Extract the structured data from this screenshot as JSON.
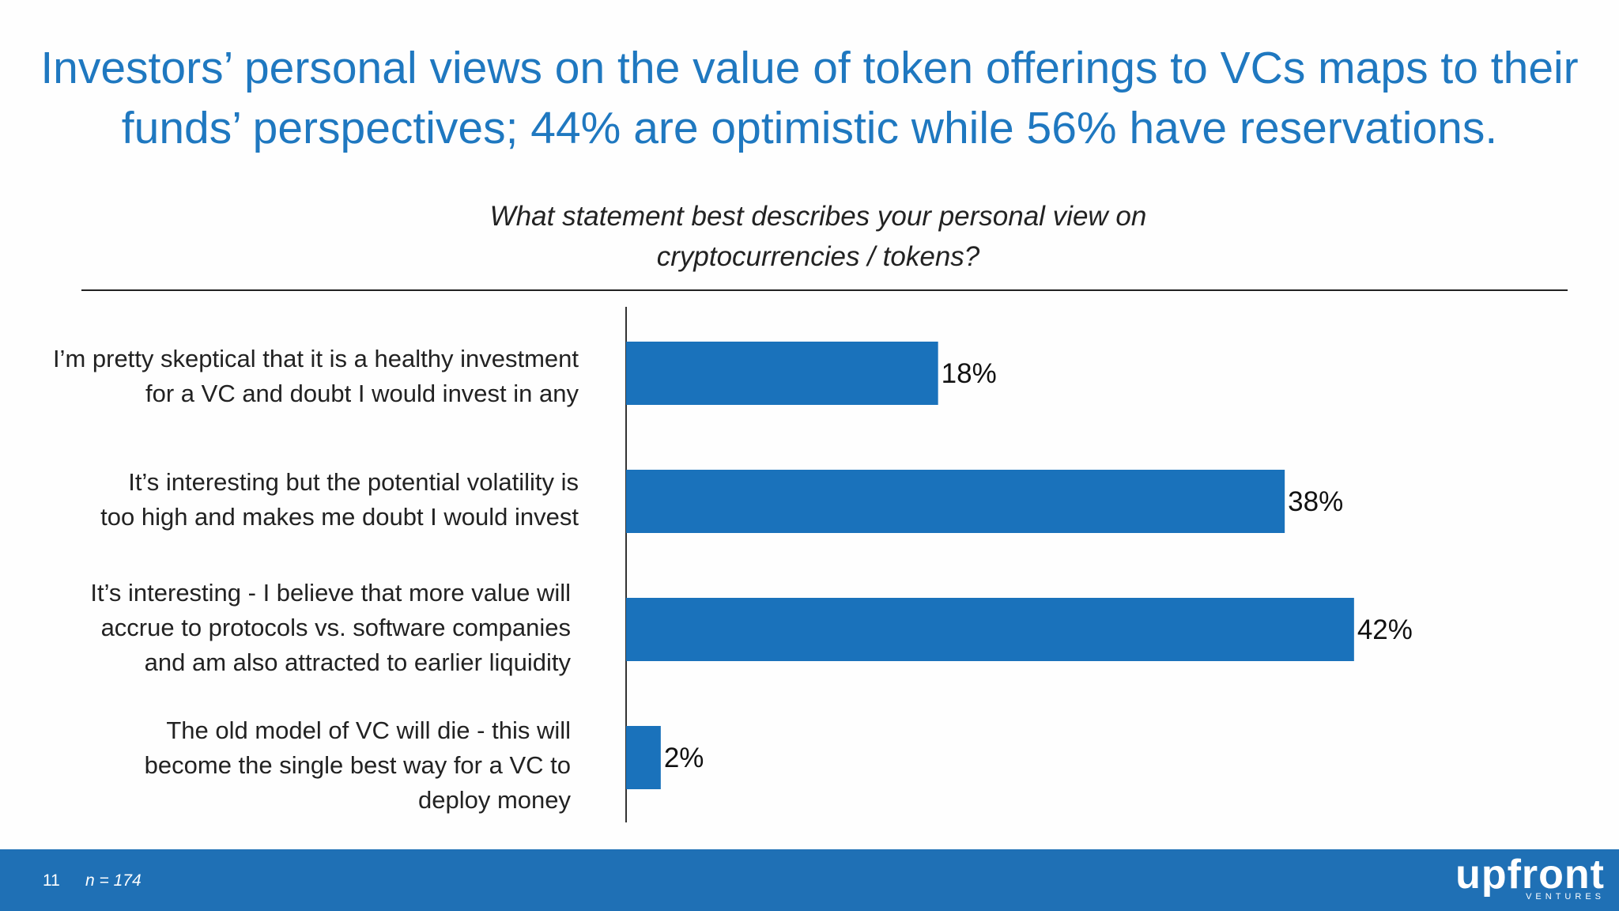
{
  "title": "Investors’ personal views on the value of token offerings to VCs maps to their funds’ perspectives; 44% are optimistic while 56% have reservations.",
  "question_line1": "What statement best describes your personal view on",
  "question_line2": "cryptocurrencies / tokens?",
  "footer": {
    "page_number": "11",
    "sample_note": "n = 174",
    "logo_text": "upfront",
    "logo_sub": "VENTURES"
  },
  "colors": {
    "accent": "#1f78c0",
    "bar": "#1a72bb",
    "footer": "#1f70b5"
  },
  "chart_data": {
    "type": "bar",
    "orientation": "horizontal",
    "title": "What statement best describes your personal view on cryptocurrencies / tokens?",
    "categories": [
      [
        "I’m pretty skeptical  that it is a healthy investment",
        "for a VC and doubt I would invest in any"
      ],
      [
        "It’s interesting but the potential volatility is",
        "too high and makes me doubt I would invest"
      ],
      [
        "It’s interesting - I believe that more value will",
        "accrue to protocols vs. software companies",
        "and am also attracted to earlier liquidity"
      ],
      [
        "The old model of VC will die - this will",
        "become the single best way for  a VC to",
        "deploy money"
      ]
    ],
    "values": [
      18,
      38,
      42,
      2
    ],
    "value_labels": [
      "18%",
      "38%",
      "42%",
      "2%"
    ],
    "unit": "%",
    "xlim": [
      0,
      80
    ],
    "grid": false,
    "legend": "none"
  }
}
